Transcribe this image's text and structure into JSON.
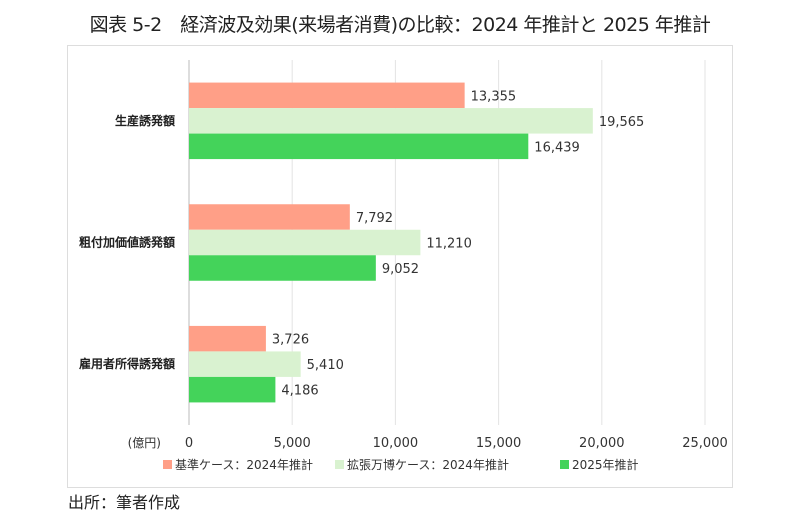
{
  "chart_data": {
    "type": "bar",
    "orientation": "horizontal",
    "title": "図表 5-2　経済波及効果(来場者消費)の比較：2024 年推計と 2025 年推計",
    "categories": [
      "生産誘発額",
      "粗付加価値誘発額",
      "雇用者所得誘発額"
    ],
    "series": [
      {
        "name": "基準ケース：2024年推計",
        "color": "#FF9F87",
        "values": [
          13355,
          7792,
          3726
        ],
        "labels": [
          "13,355",
          "7,792",
          "3,726"
        ]
      },
      {
        "name": "拡張万博ケース：2024年推計",
        "color": "#D9F2D0",
        "values": [
          19565,
          11210,
          5410
        ],
        "labels": [
          "19,565",
          "11,210",
          "5,410"
        ]
      },
      {
        "name": "2025年推計",
        "color": "#44D35A",
        "values": [
          16439,
          9052,
          4186
        ],
        "labels": [
          "16,439",
          "9,052",
          "4,186"
        ]
      }
    ],
    "xlabel": "(億円)",
    "xlim": [
      0,
      25000
    ],
    "xticks": [
      0,
      5000,
      10000,
      15000,
      20000,
      25000
    ],
    "xtick_labels": [
      "0",
      "5,000",
      "10,000",
      "15,000",
      "20,000",
      "25,000"
    ],
    "grid": true,
    "legend_position": "bottom"
  },
  "source": "出所：筆者作成"
}
